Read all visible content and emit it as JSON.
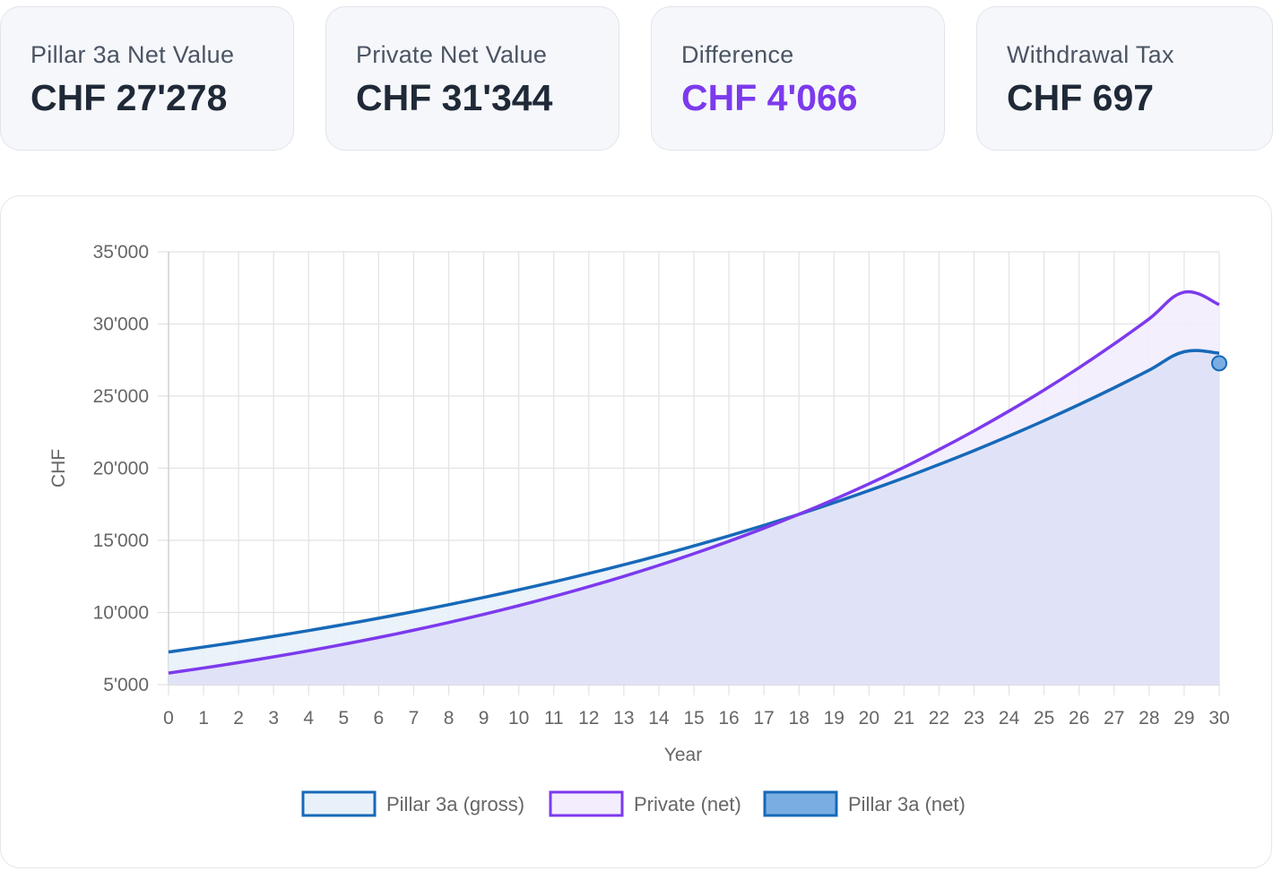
{
  "cards": [
    {
      "label": "Pillar 3a Net Value",
      "value": "CHF 27'278"
    },
    {
      "label": "Private Net Value",
      "value": "CHF 31'344"
    },
    {
      "label": "Difference",
      "value": "CHF 4'066"
    },
    {
      "label": "Withdrawal Tax",
      "value": "CHF 697"
    }
  ],
  "colors": {
    "pillar_line": "#1769b8",
    "pillar_fill": "#e8f1fa",
    "private_line": "#7c3aed",
    "private_fill": "#f3edfd",
    "overlap_fill": "#e0e3f7",
    "net_point": "#7aaee3",
    "accent_value": "#7c3aed"
  },
  "chart_data": {
    "type": "line",
    "xlabel": "Year",
    "ylabel": "CHF",
    "xlim": [
      0,
      30
    ],
    "ylim": [
      5000,
      35000
    ],
    "y_ticks": [
      "5'000",
      "10'000",
      "15'000",
      "20'000",
      "25'000",
      "30'000",
      "35'000"
    ],
    "x": [
      0,
      1,
      2,
      3,
      4,
      5,
      6,
      7,
      8,
      9,
      10,
      11,
      12,
      13,
      14,
      15,
      16,
      17,
      18,
      19,
      20,
      21,
      22,
      23,
      24,
      25,
      26,
      27,
      28,
      29,
      30
    ],
    "grid": true,
    "legend_position": "bottom",
    "series": [
      {
        "name": "Pillar 3a (gross)",
        "values": [
          7258,
          7604,
          7967,
          8348,
          8747,
          9165,
          9602,
          10061,
          10541,
          11045,
          11572,
          12125,
          12704,
          13310,
          13946,
          14612,
          15310,
          16041,
          16807,
          17609,
          18450,
          19331,
          20254,
          21222,
          22235,
          23297,
          24409,
          25575,
          26796,
          28075,
          27975
        ]
      },
      {
        "name": "Private (net)",
        "values": [
          5800,
          6153,
          6527,
          6925,
          7346,
          7794,
          8268,
          8772,
          9306,
          9873,
          10474,
          11112,
          11788,
          12506,
          13268,
          14076,
          14933,
          15842,
          16807,
          17831,
          18917,
          20069,
          21291,
          22587,
          23963,
          25422,
          26970,
          28612,
          30355,
          32203,
          31344
        ]
      },
      {
        "name": "Pillar 3a (net)",
        "points": [
          {
            "x": 30,
            "y": 27278
          }
        ]
      }
    ]
  }
}
